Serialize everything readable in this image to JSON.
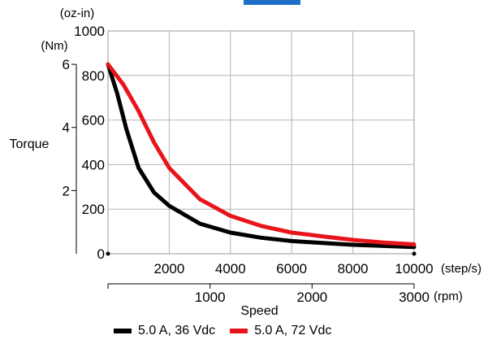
{
  "chart_data": {
    "type": "line",
    "ylabel": "Torque",
    "xlabel": "Speed",
    "x_unit_primary": "(step/s)",
    "x_unit_secondary": "(rpm)",
    "y_unit_left": "(Nm)",
    "y_unit_right": "(oz-in)",
    "xlim": [
      0,
      10000
    ],
    "ylim": [
      0,
      1000
    ],
    "x_ticks": [
      2000,
      4000,
      6000,
      8000,
      10000
    ],
    "x_tick_labels": [
      "2000",
      "4000",
      "6000",
      "8000",
      "10000"
    ],
    "rpm_ticks": [
      1000,
      2000,
      3000
    ],
    "rpm_tick_labels": [
      "1000",
      "2000",
      "3000"
    ],
    "y_ticks": [
      0,
      200,
      400,
      600,
      800,
      1000
    ],
    "y_tick_labels": [
      "0",
      "200",
      "400",
      "600",
      "800",
      "1000"
    ],
    "nm_ticks": [
      2,
      4,
      6
    ],
    "nm_tick_labels": [
      "2",
      "4",
      "6"
    ],
    "grid": true,
    "series": [
      {
        "name": "5.0 A, 36 Vdc",
        "color": "#000000",
        "x": [
          0,
          300,
          600,
          1000,
          1500,
          2000,
          3000,
          4000,
          5000,
          6000,
          7000,
          8000,
          9000,
          10000
        ],
        "y": [
          850,
          720,
          560,
          385,
          275,
          215,
          135,
          95,
          72,
          57,
          48,
          40,
          35,
          30
        ]
      },
      {
        "name": "5.0 A, 72 Vdc",
        "color": "#e8141b",
        "x": [
          0,
          500,
          1000,
          1500,
          2000,
          3000,
          4000,
          5000,
          6000,
          7000,
          8000,
          9000,
          10000
        ],
        "y": [
          850,
          760,
          640,
          500,
          385,
          245,
          170,
          125,
          95,
          78,
          62,
          50,
          42
        ]
      }
    ]
  },
  "legend": [
    {
      "label": "5.0 A, 36 Vdc",
      "color": "#000000"
    },
    {
      "label": "5.0 A, 72 Vdc",
      "color": "#e8141b"
    }
  ],
  "accent_color": "#1e6ec8"
}
